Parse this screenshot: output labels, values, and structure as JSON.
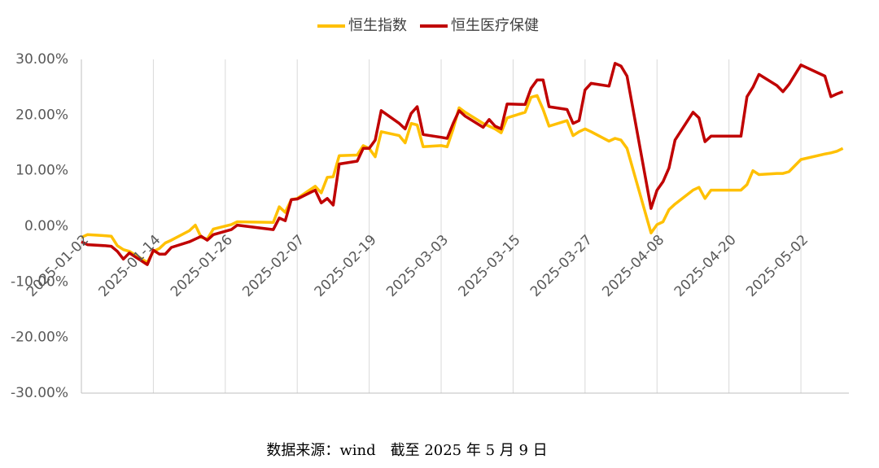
{
  "chart_data": {
    "type": "line",
    "x": [
      "2025-01-02",
      "2025-01-03",
      "2025-01-06",
      "2025-01-07",
      "2025-01-08",
      "2025-01-09",
      "2025-01-10",
      "2025-01-13",
      "2025-01-14",
      "2025-01-15",
      "2025-01-16",
      "2025-01-17",
      "2025-01-20",
      "2025-01-21",
      "2025-01-22",
      "2025-01-23",
      "2025-01-24",
      "2025-01-27",
      "2025-01-28",
      "2025-02-03",
      "2025-02-04",
      "2025-02-05",
      "2025-02-06",
      "2025-02-07",
      "2025-02-10",
      "2025-02-11",
      "2025-02-12",
      "2025-02-13",
      "2025-02-14",
      "2025-02-17",
      "2025-02-18",
      "2025-02-19",
      "2025-02-20",
      "2025-02-21",
      "2025-02-24",
      "2025-02-25",
      "2025-02-26",
      "2025-02-27",
      "2025-02-28",
      "2025-03-03",
      "2025-03-04",
      "2025-03-05",
      "2025-03-06",
      "2025-03-07",
      "2025-03-10",
      "2025-03-11",
      "2025-03-12",
      "2025-03-13",
      "2025-03-14",
      "2025-03-17",
      "2025-03-18",
      "2025-03-19",
      "2025-03-20",
      "2025-03-21",
      "2025-03-24",
      "2025-03-25",
      "2025-03-26",
      "2025-03-27",
      "2025-03-28",
      "2025-03-31",
      "2025-04-01",
      "2025-04-02",
      "2025-04-03",
      "2025-04-07",
      "2025-04-08",
      "2025-04-09",
      "2025-04-10",
      "2025-04-11",
      "2025-04-14",
      "2025-04-15",
      "2025-04-16",
      "2025-04-17",
      "2025-04-22",
      "2025-04-23",
      "2025-04-24",
      "2025-04-25",
      "2025-04-28",
      "2025-04-29",
      "2025-04-30",
      "2025-05-02",
      "2025-05-06",
      "2025-05-07",
      "2025-05-08",
      "2025-05-09"
    ],
    "series": [
      {
        "name": "恒生指数",
        "color": "#FFC000",
        "values": [
          -2.0,
          -1.5,
          -1.7,
          -1.8,
          -3.5,
          -4.2,
          -4.5,
          -6.5,
          -4.5,
          -4.0,
          -3.0,
          -2.5,
          -0.8,
          0.2,
          -2.0,
          -2.3,
          -0.5,
          0.3,
          0.8,
          0.7,
          3.5,
          2.5,
          4.8,
          5.0,
          7.2,
          6.0,
          8.8,
          8.9,
          12.7,
          12.8,
          14.5,
          14.0,
          12.5,
          17.0,
          16.3,
          15.0,
          18.5,
          18.2,
          14.3,
          14.5,
          14.3,
          17.5,
          21.3,
          20.5,
          18.5,
          18.0,
          17.5,
          16.8,
          19.5,
          20.5,
          23.2,
          23.5,
          21.0,
          18.0,
          19.0,
          16.3,
          17.0,
          17.5,
          17.0,
          15.3,
          15.8,
          15.5,
          14.0,
          -1.2,
          0.3,
          0.8,
          3.0,
          4.0,
          6.5,
          7.0,
          5.0,
          6.5,
          6.5,
          7.5,
          10.0,
          9.3,
          9.5,
          9.5,
          9.8,
          12.0,
          13.0,
          13.2,
          13.5,
          14.0
        ]
      },
      {
        "name": "恒生医疗保健",
        "color": "#C00000",
        "values": [
          -2.8,
          -3.3,
          -3.5,
          -3.6,
          -4.5,
          -5.9,
          -4.8,
          -6.9,
          -4.3,
          -5.0,
          -5.0,
          -3.8,
          -2.8,
          -2.3,
          -1.8,
          -2.5,
          -1.5,
          -0.6,
          0.2,
          -0.6,
          1.5,
          1.0,
          4.8,
          4.9,
          6.5,
          4.2,
          5.0,
          3.8,
          11.2,
          11.7,
          14.0,
          14.0,
          15.5,
          20.8,
          18.5,
          17.5,
          20.3,
          21.5,
          16.5,
          16.0,
          15.8,
          18.5,
          20.8,
          19.8,
          17.8,
          19.2,
          18.0,
          17.5,
          22.0,
          21.9,
          24.8,
          26.3,
          26.3,
          21.5,
          21.0,
          18.5,
          19.0,
          24.5,
          25.7,
          25.2,
          29.3,
          28.8,
          27.0,
          3.2,
          6.5,
          8.0,
          10.5,
          15.5,
          20.5,
          19.5,
          15.2,
          16.2,
          16.2,
          23.3,
          25.0,
          27.3,
          25.3,
          24.2,
          25.5,
          29.0,
          27.0,
          23.3,
          23.8,
          24.2
        ]
      }
    ],
    "xlim": [
      "2025-01-02",
      "2025-05-10"
    ],
    "xticks": [
      "2025-01-02",
      "2025-01-14",
      "2025-01-26",
      "2025-02-07",
      "2025-02-19",
      "2025-03-03",
      "2025-03-15",
      "2025-03-27",
      "2025-04-08",
      "2025-04-20",
      "2025-05-02"
    ],
    "ylim": [
      -30,
      30
    ],
    "yticks": [
      {
        "value": -30,
        "label": "-30.00%"
      },
      {
        "value": -20,
        "label": "-20.00%"
      },
      {
        "value": -10,
        "label": "-10.00%"
      },
      {
        "value": 0,
        "label": "0.00%"
      },
      {
        "value": 10,
        "label": "10.00%"
      },
      {
        "value": 20,
        "label": "20.00%"
      },
      {
        "value": 30,
        "label": "30.00%"
      }
    ],
    "grid": true,
    "legend": "top",
    "source": "数据来源：wind　截至 2025 年 5 月 9 日"
  }
}
